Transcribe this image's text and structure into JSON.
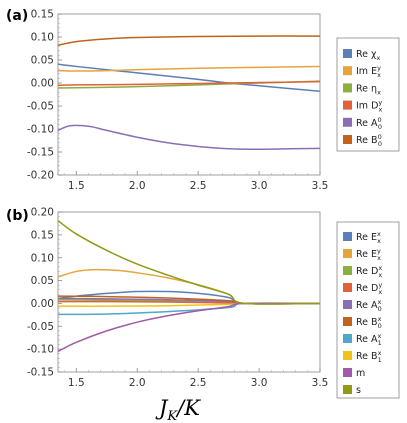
{
  "chart_data": [
    {
      "type": "line",
      "panel_label": "(a)",
      "xlim": [
        1.35,
        3.5
      ],
      "ylim": [
        -0.2,
        0.15
      ],
      "xticks": [
        "1.5",
        "2.0",
        "2.5",
        "3.0",
        "3.5"
      ],
      "yticks": [
        "0.15",
        "0.10",
        "0.05",
        "0.00",
        "-0.05",
        "-0.10",
        "-0.15",
        "-0.20"
      ],
      "grid": false,
      "legend_position": "right",
      "series": [
        {
          "name": "Re χx",
          "base": "Re χ",
          "sub": "x",
          "color": "#5b7fb8",
          "x": [
            1.35,
            1.5,
            2.0,
            2.5,
            2.75,
            3.0,
            3.5
          ],
          "y": [
            0.041,
            0.036,
            0.022,
            0.008,
            0.0,
            -0.006,
            -0.018
          ]
        },
        {
          "name": "Im Eyx",
          "base": "Im E",
          "sup": "y",
          "sub": "x",
          "color": "#e6a43d",
          "x": [
            1.35,
            1.5,
            1.75,
            2.0,
            2.5,
            3.0,
            3.5
          ],
          "y": [
            0.027,
            0.026,
            0.027,
            0.029,
            0.032,
            0.034,
            0.036
          ]
        },
        {
          "name": "Re ηx",
          "base": "Re η",
          "sub": "x",
          "color": "#8ab03f",
          "x": [
            1.35,
            2.0,
            2.5,
            3.0,
            3.5
          ],
          "y": [
            -0.011,
            -0.008,
            -0.004,
            0.0,
            0.004
          ]
        },
        {
          "name": "Im Dyx",
          "base": "Im D",
          "sup": "y",
          "sub": "x",
          "color": "#e0623a",
          "x": [
            1.35,
            1.5,
            2.0,
            2.5,
            3.0,
            3.5
          ],
          "y": [
            -0.005,
            -0.004,
            -0.003,
            -0.001,
            0.001,
            0.003
          ]
        },
        {
          "name": "Re A00",
          "base": "Re A",
          "sup": "0",
          "sub": "0",
          "color": "#8a6fb5",
          "x": [
            1.35,
            1.45,
            1.6,
            1.75,
            2.0,
            2.25,
            2.5,
            2.75,
            3.0,
            3.25,
            3.5
          ],
          "y": [
            -0.103,
            -0.093,
            -0.094,
            -0.103,
            -0.118,
            -0.13,
            -0.138,
            -0.143,
            -0.144,
            -0.143,
            -0.142
          ]
        },
        {
          "name": "Re B00",
          "base": "Re B",
          "sup": "0",
          "sub": "0",
          "color": "#c2621c",
          "x": [
            1.35,
            1.5,
            1.75,
            2.0,
            2.5,
            3.0,
            3.5
          ],
          "y": [
            0.082,
            0.09,
            0.096,
            0.099,
            0.101,
            0.102,
            0.102
          ]
        }
      ]
    },
    {
      "type": "line",
      "panel_label": "(b)",
      "xlim": [
        1.35,
        3.5
      ],
      "ylim": [
        -0.15,
        0.2
      ],
      "xticks": [
        "1.5",
        "2.0",
        "2.5",
        "3.0",
        "3.5"
      ],
      "yticks": [
        "0.20",
        "0.15",
        "0.10",
        "0.05",
        "0.00",
        "-0.05",
        "-0.10",
        "-0.15"
      ],
      "xlabel": "JK/K",
      "xlabel_parts": {
        "j": "J",
        "k_sub": "K",
        "slash": "/",
        "k": "K"
      },
      "grid": false,
      "legend_position": "right",
      "series": [
        {
          "name": "Re Exx",
          "base": "Re E",
          "sup": "x",
          "sub": "x",
          "color": "#5b7fb8",
          "x": [
            1.35,
            1.5,
            1.75,
            2.0,
            2.25,
            2.5,
            2.75,
            2.88,
            3.5
          ],
          "y": [
            0.011,
            0.016,
            0.022,
            0.026,
            0.026,
            0.022,
            0.013,
            0.0,
            0.0
          ]
        },
        {
          "name": "Re Eyx",
          "base": "Re E",
          "sup": "y",
          "sub": "x",
          "color": "#e6a43d",
          "x": [
            1.35,
            1.5,
            1.65,
            1.85,
            2.0,
            2.25,
            2.5,
            2.75,
            2.88,
            3.5
          ],
          "y": [
            0.058,
            0.07,
            0.074,
            0.072,
            0.067,
            0.056,
            0.041,
            0.02,
            0.0,
            0.0
          ]
        },
        {
          "name": "Re Dxx",
          "base": "Re D",
          "sup": "x",
          "sub": "x",
          "color": "#8ab03f",
          "x": [
            1.35,
            1.75,
            2.25,
            2.75,
            2.88,
            3.5
          ],
          "y": [
            0.008,
            0.007,
            0.005,
            0.002,
            0.0,
            0.0
          ]
        },
        {
          "name": "Re Dyx",
          "base": "Re D",
          "sup": "y",
          "sub": "x",
          "color": "#e0623a",
          "x": [
            1.35,
            1.75,
            2.25,
            2.75,
            2.88,
            3.5
          ],
          "y": [
            0.004,
            0.004,
            0.003,
            0.001,
            0.0,
            0.0
          ]
        },
        {
          "name": "Re Ax0",
          "base": "Re A",
          "sup": "x",
          "sub": "0",
          "color": "#8a6fb5",
          "x": [
            1.35,
            1.75,
            2.25,
            2.75,
            2.88,
            3.5
          ],
          "y": [
            0.011,
            0.01,
            0.008,
            0.004,
            0.0,
            0.0
          ]
        },
        {
          "name": "Re Bx0",
          "base": "Re B",
          "sup": "x",
          "sub": "0",
          "color": "#c2621c",
          "x": [
            1.35,
            1.75,
            2.25,
            2.75,
            2.88,
            3.5
          ],
          "y": [
            0.016,
            0.015,
            0.012,
            0.006,
            0.0,
            0.0
          ]
        },
        {
          "name": "Re Ax1",
          "base": "Re A",
          "sup": "x",
          "sub": "1",
          "color": "#4fa7c9",
          "x": [
            1.35,
            1.75,
            2.25,
            2.75,
            2.88,
            3.5
          ],
          "y": [
            -0.024,
            -0.023,
            -0.018,
            -0.009,
            0.0,
            0.0
          ]
        },
        {
          "name": "Re Bx1",
          "base": "Re B",
          "sup": "x",
          "sub": "1",
          "color": "#f0c21a",
          "x": [
            1.35,
            1.75,
            2.25,
            2.75,
            2.88,
            3.5
          ],
          "y": [
            -0.006,
            -0.006,
            -0.005,
            -0.002,
            0.0,
            0.0
          ]
        },
        {
          "name": "m",
          "base": "m",
          "color": "#a05aa8",
          "x": [
            1.35,
            1.5,
            1.75,
            2.0,
            2.25,
            2.5,
            2.75,
            2.88,
            3.5
          ],
          "y": [
            -0.105,
            -0.085,
            -0.06,
            -0.041,
            -0.027,
            -0.016,
            -0.007,
            0.0,
            0.0
          ]
        },
        {
          "name": "s",
          "base": "s",
          "color": "#909a15",
          "x": [
            1.35,
            1.5,
            1.75,
            2.0,
            2.25,
            2.5,
            2.75,
            2.88,
            3.5
          ],
          "y": [
            0.181,
            0.152,
            0.116,
            0.086,
            0.062,
            0.04,
            0.02,
            0.0,
            0.0
          ]
        }
      ]
    }
  ]
}
